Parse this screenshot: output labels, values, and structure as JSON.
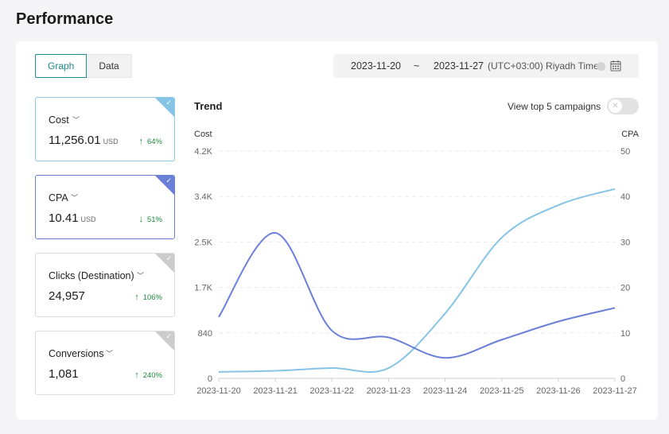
{
  "page_title": "Performance",
  "view_tabs": {
    "graph": "Graph",
    "data": "Data"
  },
  "date_range": {
    "start": "2023-11-20",
    "separator": "~",
    "end": "2023-11-27",
    "timezone": "(UTC+03:00) Riyadh Time"
  },
  "metrics": [
    {
      "label": "Cost",
      "value": "11,256.01",
      "unit": "USD",
      "change": "64%",
      "direction": "up",
      "selected": true,
      "color": "#86c4e6"
    },
    {
      "label": "CPA",
      "value": "10.41",
      "unit": "USD",
      "change": "51%",
      "direction": "down",
      "selected": true,
      "color": "#6a7fd8"
    },
    {
      "label": "Clicks (Destination)",
      "value": "24,957",
      "unit": "",
      "change": "106%",
      "direction": "up",
      "selected": false,
      "color": "#cccccc"
    },
    {
      "label": "Conversions",
      "value": "1,081",
      "unit": "",
      "change": "240%",
      "direction": "up",
      "selected": false,
      "color": "#cccccc"
    }
  ],
  "trend": {
    "title": "Trend",
    "toggle_label": "View top 5 campaigns",
    "toggle_on": false
  },
  "chart_data": {
    "type": "line",
    "x": [
      "2023-11-20",
      "2023-11-21",
      "2023-11-22",
      "2023-11-23",
      "2023-11-24",
      "2023-11-25",
      "2023-11-26",
      "2023-11-27"
    ],
    "left_axis": {
      "title": "Cost",
      "ticks": [
        "0",
        "840",
        "1.7K",
        "2.5K",
        "3.4K",
        "4.2K"
      ],
      "ylim": [
        0,
        4200
      ]
    },
    "right_axis": {
      "title": "CPA",
      "ticks": [
        "0",
        "10",
        "20",
        "30",
        "40",
        "50"
      ],
      "ylim": [
        0,
        50
      ]
    },
    "grid": true,
    "series": [
      {
        "axis": "left",
        "color": "#86c4e6",
        "values": [
          120,
          140,
          190,
          190,
          1200,
          2600,
          3200,
          3500
        ]
      },
      {
        "axis": "right",
        "color": "#6a7fd8",
        "values": [
          13.5,
          32,
          10.5,
          9,
          4.5,
          8.5,
          12.5,
          15.5
        ]
      }
    ]
  }
}
